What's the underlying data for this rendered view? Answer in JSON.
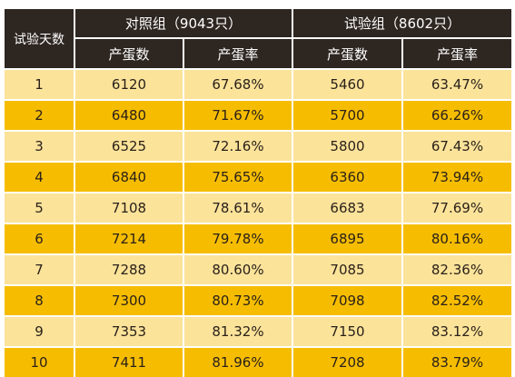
{
  "table": {
    "corner_label": "试验天数",
    "group_a_label": "对照组（9043只）",
    "group_b_label": "试验组（8602只）",
    "sub_headers": [
      "产蛋数",
      "产蛋率",
      "产蛋数",
      "产蛋率"
    ],
    "rows": [
      {
        "day": "1",
        "a_count": "6120",
        "a_rate": "67.68%",
        "b_count": "5460",
        "b_rate": "63.47%"
      },
      {
        "day": "2",
        "a_count": "6480",
        "a_rate": "71.67%",
        "b_count": "5700",
        "b_rate": "66.26%"
      },
      {
        "day": "3",
        "a_count": "6525",
        "a_rate": "72.16%",
        "b_count": "5800",
        "b_rate": "67.43%"
      },
      {
        "day": "4",
        "a_count": "6840",
        "a_rate": "75.65%",
        "b_count": "6360",
        "b_rate": "73.94%"
      },
      {
        "day": "5",
        "a_count": "7108",
        "a_rate": "78.61%",
        "b_count": "6683",
        "b_rate": "77.69%"
      },
      {
        "day": "6",
        "a_count": "7214",
        "a_rate": "79.78%",
        "b_count": "6895",
        "b_rate": "80.16%"
      },
      {
        "day": "7",
        "a_count": "7288",
        "a_rate": "80.60%",
        "b_count": "7085",
        "b_rate": "82.36%"
      },
      {
        "day": "8",
        "a_count": "7300",
        "a_rate": "80.73%",
        "b_count": "7098",
        "b_rate": "82.52%"
      },
      {
        "day": "9",
        "a_count": "7353",
        "a_rate": "81.32%",
        "b_count": "7150",
        "b_rate": "83.12%"
      },
      {
        "day": "10",
        "a_count": "7411",
        "a_rate": "81.96%",
        "b_count": "7208",
        "b_rate": "83.79%"
      }
    ]
  },
  "colors": {
    "header_bg": "#2e2621",
    "header_text": "#ffffff",
    "row_light": "#fbe39a",
    "row_dark": "#f6bd00",
    "cell_text": "#2b211a"
  }
}
